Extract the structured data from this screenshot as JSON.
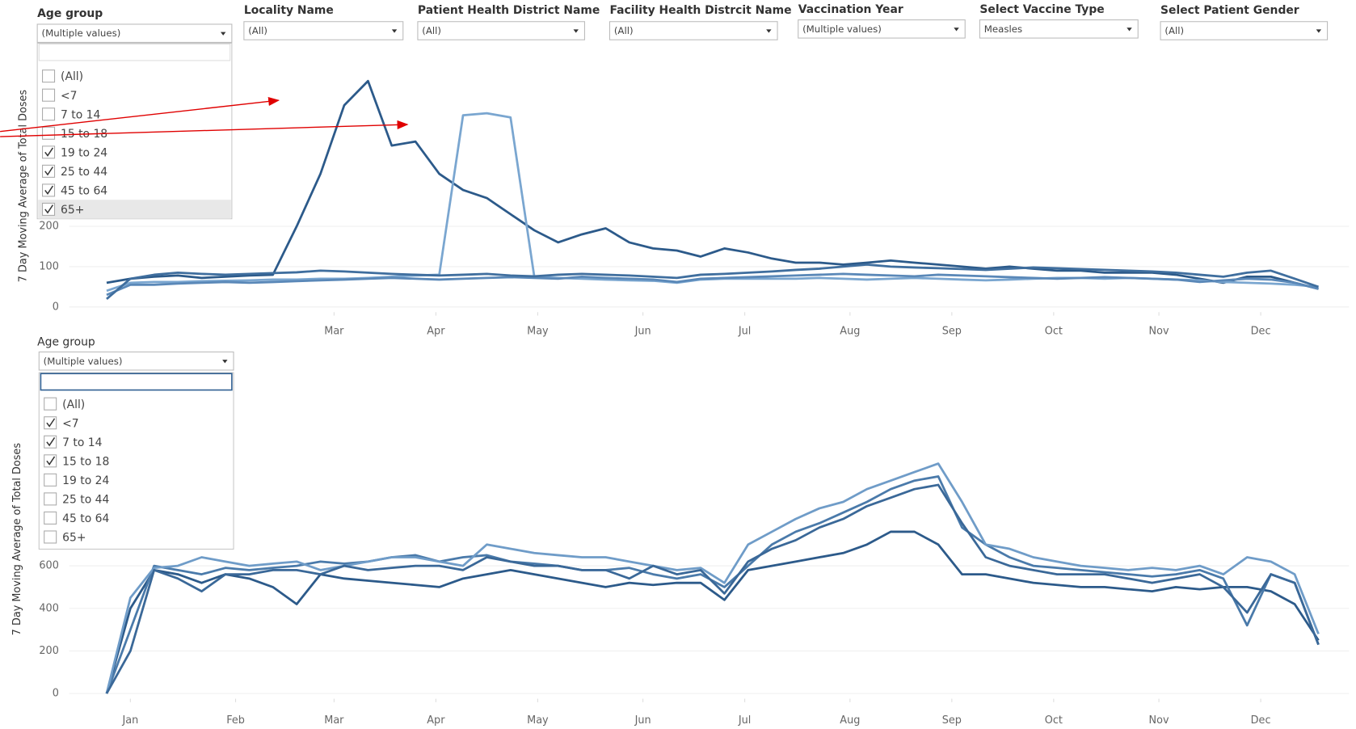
{
  "filters": [
    {
      "label": "Age group",
      "value": "(Multiple values)"
    },
    {
      "label": "Locality Name",
      "value": "(All)"
    },
    {
      "label": "Patient Health District Name",
      "value": "(All)"
    },
    {
      "label": "Facility Health Distrcit Name",
      "value": "(All)"
    },
    {
      "label": "Vaccination Year",
      "value": "(Multiple values)"
    },
    {
      "label": "Select Vaccine Type",
      "value": "Measles"
    },
    {
      "label": "Select Patient Gender",
      "value": "(All)"
    }
  ],
  "dropdowns": [
    {
      "options": [
        {
          "text": "(All)",
          "checked": false
        },
        {
          "text": "<7",
          "checked": false
        },
        {
          "text": "7 to 14",
          "checked": false
        },
        {
          "text": "15 to 18",
          "checked": false
        },
        {
          "text": "19 to 24",
          "checked": true
        },
        {
          "text": "25 to 44",
          "checked": true
        },
        {
          "text": "45 to 64",
          "checked": true
        },
        {
          "text": "65+",
          "checked": true
        }
      ]
    },
    {
      "label": "Age group",
      "value": "(Multiple values)",
      "options": [
        {
          "text": "(All)",
          "checked": false
        },
        {
          "text": "<7",
          "checked": true
        },
        {
          "text": "7 to 14",
          "checked": true
        },
        {
          "text": "15 to 18",
          "checked": true
        },
        {
          "text": "19 to 24",
          "checked": false
        },
        {
          "text": "25 to 44",
          "checked": false
        },
        {
          "text": "45 to 64",
          "checked": false
        },
        {
          "text": "65+",
          "checked": false
        }
      ]
    }
  ],
  "chart_data": [
    {
      "type": "line",
      "ylabel": "7 Day Moving Average of Total Doses",
      "grid": true,
      "x": [
        8,
        15,
        22,
        29,
        36,
        43,
        50,
        57,
        64,
        71,
        78,
        85,
        92,
        99,
        106,
        113,
        120,
        127,
        134,
        141,
        148,
        155,
        162,
        169,
        176,
        183,
        190,
        197,
        204,
        211,
        218,
        225,
        232,
        239,
        246,
        253,
        260,
        267,
        274,
        281,
        288,
        295,
        302,
        309,
        316,
        323,
        330,
        337,
        344,
        351,
        358,
        365
      ],
      "xlim": [
        -3,
        374
      ],
      "xticks": [
        {
          "value": 75,
          "label": "Mar"
        },
        {
          "value": 105,
          "label": "Apr"
        },
        {
          "value": 135,
          "label": "May"
        },
        {
          "value": 166,
          "label": "Jun"
        },
        {
          "value": 196,
          "label": "Jul"
        },
        {
          "value": 227,
          "label": "Aug"
        },
        {
          "value": 257,
          "label": "Sep"
        },
        {
          "value": 287,
          "label": "Oct"
        },
        {
          "value": 318,
          "label": "Nov"
        },
        {
          "value": 348,
          "label": "Dec"
        }
      ],
      "ylim": [
        0,
        600
      ],
      "yticks": [
        0,
        100,
        200
      ],
      "series": [
        {
          "color": "#2c5a8a",
          "values": [
            60,
            70,
            75,
            78,
            72,
            75,
            78,
            80,
            200,
            330,
            500,
            560,
            400,
            410,
            330,
            290,
            270,
            230,
            190,
            160,
            180,
            195,
            160,
            145,
            140,
            125,
            145,
            135,
            120,
            110,
            110,
            105,
            110,
            115,
            110,
            105,
            100,
            95,
            100,
            95,
            90,
            90,
            85,
            85,
            85,
            80,
            70,
            60,
            75,
            75,
            60,
            45
          ]
        },
        {
          "color": "#7aa6d0",
          "values": [
            40,
            60,
            62,
            62,
            64,
            65,
            66,
            68,
            68,
            70,
            70,
            72,
            75,
            78,
            80,
            475,
            480,
            470,
            75,
            72,
            70,
            68,
            66,
            65,
            60,
            68,
            70,
            70,
            70,
            70,
            72,
            70,
            68,
            70,
            72,
            70,
            68,
            66,
            68,
            70,
            72,
            72,
            70,
            72,
            70,
            68,
            66,
            62,
            60,
            58,
            55,
            50
          ]
        },
        {
          "color": "#5a88b8",
          "values": [
            30,
            55,
            55,
            58,
            60,
            62,
            60,
            62,
            64,
            66,
            68,
            70,
            72,
            70,
            68,
            70,
            72,
            74,
            72,
            70,
            75,
            72,
            70,
            68,
            62,
            70,
            72,
            74,
            76,
            78,
            80,
            82,
            80,
            78,
            76,
            80,
            78,
            76,
            74,
            72,
            70,
            72,
            74,
            72,
            70,
            68,
            62,
            66,
            70,
            68,
            60,
            45
          ]
        },
        {
          "color": "#3f6e9e",
          "values": [
            20,
            70,
            80,
            85,
            82,
            80,
            82,
            84,
            86,
            90,
            88,
            85,
            82,
            80,
            78,
            80,
            82,
            78,
            76,
            80,
            82,
            80,
            78,
            75,
            72,
            80,
            82,
            85,
            88,
            92,
            95,
            100,
            105,
            100,
            98,
            96,
            94,
            92,
            95,
            98,
            96,
            94,
            92,
            90,
            88,
            85,
            80,
            75,
            85,
            90,
            70,
            50
          ]
        }
      ]
    },
    {
      "type": "line",
      "ylabel": "7 Day Moving Average of Total Doses",
      "grid": true,
      "x": [
        8,
        15,
        22,
        29,
        36,
        43,
        50,
        57,
        64,
        71,
        78,
        85,
        92,
        99,
        106,
        113,
        120,
        127,
        134,
        141,
        148,
        155,
        162,
        169,
        176,
        183,
        190,
        197,
        204,
        211,
        218,
        225,
        232,
        239,
        246,
        253,
        260,
        267,
        274,
        281,
        288,
        295,
        302,
        309,
        316,
        323,
        330,
        337,
        344,
        351,
        358,
        365
      ],
      "xlim": [
        -3,
        374
      ],
      "xticks": [
        {
          "value": 15,
          "label": "Jan"
        },
        {
          "value": 46,
          "label": "Feb"
        },
        {
          "value": 75,
          "label": "Mar"
        },
        {
          "value": 105,
          "label": "Apr"
        },
        {
          "value": 135,
          "label": "May"
        },
        {
          "value": 166,
          "label": "Jun"
        },
        {
          "value": 196,
          "label": "Jul"
        },
        {
          "value": 227,
          "label": "Aug"
        },
        {
          "value": 257,
          "label": "Sep"
        },
        {
          "value": 287,
          "label": "Oct"
        },
        {
          "value": 318,
          "label": "Nov"
        },
        {
          "value": 348,
          "label": "Dec"
        }
      ],
      "ylim": [
        0,
        1450
      ],
      "yticks": [
        0,
        200,
        400,
        600
      ],
      "series": [
        {
          "color": "#2c5a8a",
          "values": [
            0,
            400,
            580,
            560,
            520,
            560,
            540,
            500,
            420,
            560,
            540,
            530,
            520,
            510,
            500,
            540,
            560,
            580,
            560,
            540,
            520,
            500,
            520,
            510,
            520,
            520,
            440,
            580,
            600,
            620,
            640,
            660,
            700,
            760,
            760,
            700,
            560,
            560,
            540,
            520,
            510,
            500,
            500,
            490,
            480,
            500,
            490,
            500,
            500,
            480,
            420,
            250
          ]
        },
        {
          "color": "#4a7aaa",
          "values": [
            0,
            300,
            600,
            580,
            560,
            590,
            580,
            590,
            600,
            620,
            610,
            620,
            640,
            650,
            620,
            640,
            650,
            620,
            610,
            600,
            580,
            580,
            590,
            560,
            540,
            560,
            500,
            600,
            700,
            760,
            800,
            850,
            900,
            960,
            1000,
            1020,
            780,
            700,
            640,
            600,
            590,
            580,
            570,
            560,
            550,
            560,
            580,
            540,
            320,
            560,
            520,
            230
          ]
        },
        {
          "color": "#6f9cc8",
          "values": [
            0,
            450,
            590,
            600,
            640,
            620,
            600,
            610,
            620,
            580,
            600,
            620,
            640,
            640,
            620,
            600,
            700,
            680,
            660,
            650,
            640,
            640,
            620,
            600,
            580,
            590,
            520,
            700,
            760,
            820,
            870,
            900,
            960,
            1000,
            1040,
            1080,
            900,
            700,
            680,
            640,
            620,
            600,
            590,
            580,
            590,
            580,
            600,
            560,
            640,
            620,
            560,
            280
          ]
        },
        {
          "color": "#3a6898",
          "values": [
            0,
            200,
            580,
            540,
            480,
            560,
            560,
            580,
            580,
            560,
            600,
            580,
            590,
            600,
            600,
            580,
            640,
            620,
            600,
            600,
            580,
            580,
            540,
            600,
            560,
            580,
            470,
            620,
            680,
            720,
            780,
            820,
            880,
            920,
            960,
            980,
            800,
            640,
            600,
            580,
            560,
            560,
            560,
            540,
            520,
            540,
            560,
            500,
            380,
            560,
            520,
            230
          ]
        }
      ]
    }
  ]
}
